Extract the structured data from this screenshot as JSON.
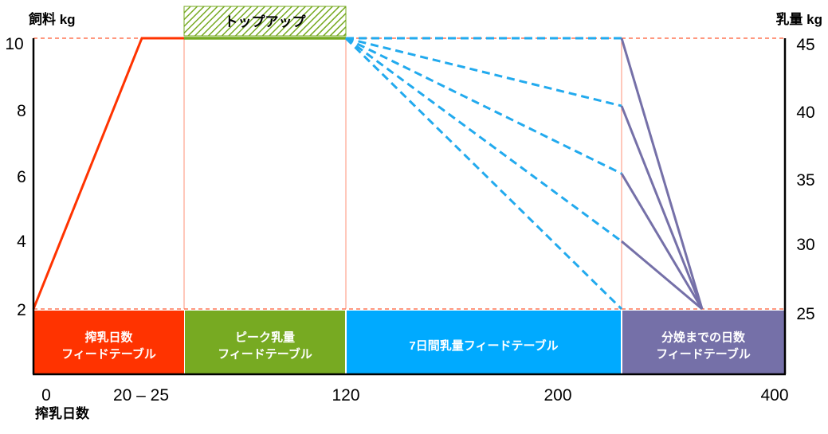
{
  "chart_data": {
    "type": "line",
    "left_axis_title": "飼料 kg",
    "right_axis_title": "乳量 kg",
    "x_axis_title": "搾乳日数",
    "left_ticks": [
      "2",
      "4",
      "6",
      "8",
      "10"
    ],
    "right_ticks": [
      "25",
      "30",
      "35",
      "40",
      "45"
    ],
    "left_range": [
      2,
      10
    ],
    "right_range": [
      25,
      45
    ],
    "x_ticks": [
      "0",
      "20 – 25",
      "120",
      "200",
      "400"
    ],
    "topup_label": "トップアップ",
    "segments": [
      {
        "lines": [
          "搾乳日数",
          "フィードテーブル"
        ],
        "color": "#ff3300"
      },
      {
        "lines": [
          "ピーク乳量",
          "フィードテーブル"
        ],
        "color": "#77aa22"
      },
      {
        "lines": [
          "7日間乳量フィードテーブル"
        ],
        "color": "#00aaff"
      },
      {
        "lines": [
          "分娩までの日数",
          "フィードテーブル"
        ],
        "color": "#7570a8"
      }
    ],
    "feed_ramp": {
      "start": 2,
      "end": 10,
      "color": "#ff3300"
    },
    "peak_feed": {
      "value": 10,
      "color": "#77aa22"
    },
    "dashed_end_feed": [
      10,
      8,
      6,
      4,
      2
    ],
    "dry_off_feed": 2,
    "dash_color": "#22aaee",
    "dry_color": "#7570a8",
    "ref_line_color": "#ff7755"
  }
}
